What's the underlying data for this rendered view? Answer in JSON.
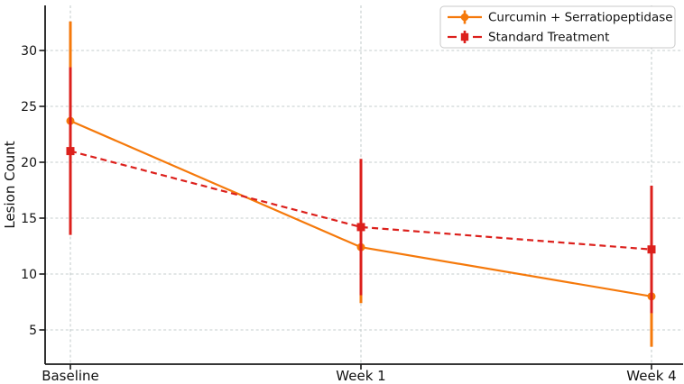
{
  "chart_data": {
    "type": "line",
    "title": "",
    "xlabel": "",
    "ylabel": "Lesion Count",
    "categories": [
      "Baseline",
      "Week 1",
      "Week 4"
    ],
    "yticks": [
      5,
      10,
      15,
      20,
      25,
      30
    ],
    "ylim": [
      1.9,
      34.0
    ],
    "grid": true,
    "grid_style": "dashed",
    "legend_position": "upper right",
    "series": [
      {
        "name": "Curcumin + Serratiopeptidase",
        "color": "#F5790B",
        "linestyle": "solid",
        "marker": "circle",
        "values": [
          23.7,
          12.4,
          8.0
        ],
        "errors": [
          8.9,
          5.0,
          4.5
        ]
      },
      {
        "name": "Standard Treatment",
        "color": "#DC201C",
        "linestyle": "dashed",
        "marker": "square",
        "values": [
          21.0,
          14.2,
          12.2
        ],
        "errors": [
          7.5,
          6.1,
          5.7
        ]
      }
    ]
  }
}
